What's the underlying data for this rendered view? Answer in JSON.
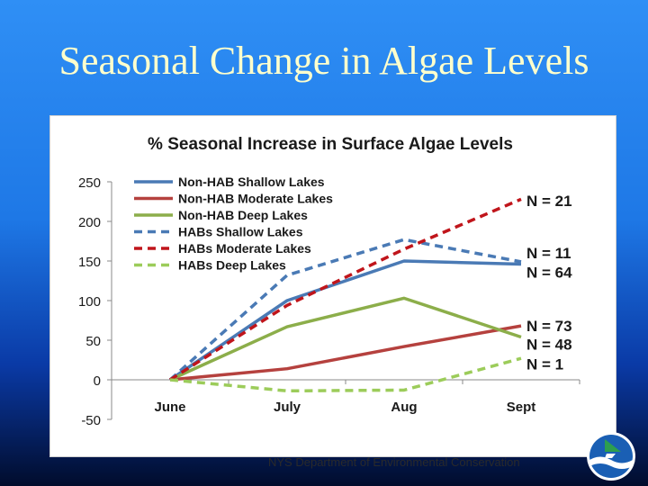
{
  "slide": {
    "title": "Seasonal Change in Algae Levels",
    "footer": "NYS Department of Environmental Conservation"
  },
  "colors": {
    "blue": "#4a7ab5",
    "red": "#b5413e",
    "green": "#8cae4a",
    "red_dashed": "#c0151b",
    "green_dashed": "#9ccc5a"
  },
  "chart_data": {
    "type": "line",
    "title": "% Seasonal Increase in Surface Algae Levels",
    "xlabel": "",
    "ylabel": "",
    "categories": [
      "June",
      "July",
      "Aug",
      "Sept"
    ],
    "ylim": [
      -50,
      250
    ],
    "yticks": [
      250,
      200,
      150,
      100,
      50,
      0,
      -50
    ],
    "grid": false,
    "legend": "top-left",
    "series": [
      {
        "name": "Non-HAB Shallow Lakes",
        "values": [
          0,
          100,
          150,
          146
        ],
        "color": "#4a7ab5",
        "dashed": false
      },
      {
        "name": "Non-HAB Moderate Lakes",
        "values": [
          0,
          14,
          42,
          68
        ],
        "color": "#b5413e",
        "dashed": false
      },
      {
        "name": "Non-HAB Deep Lakes",
        "values": [
          0,
          67,
          103,
          54
        ],
        "color": "#8cae4a",
        "dashed": false
      },
      {
        "name": "HABs Shallow Lakes",
        "values": [
          0,
          132,
          177,
          149
        ],
        "color": "#4a7ab5",
        "dashed": true
      },
      {
        "name": "HABs Moderate Lakes",
        "values": [
          0,
          94,
          165,
          228
        ],
        "color": "#c0151b",
        "dashed": true
      },
      {
        "name": "HABs Deep Lakes",
        "values": [
          0,
          -14,
          -13,
          27
        ],
        "color": "#9ccc5a",
        "dashed": true
      }
    ],
    "annotations": [
      {
        "text": "N = 21",
        "y": 226
      },
      {
        "text": "N = 11",
        "y": 160
      },
      {
        "text": "N = 64",
        "y": 136
      },
      {
        "text": "N = 73",
        "y": 68
      },
      {
        "text": "N = 48",
        "y": 45
      },
      {
        "text": "N = 1",
        "y": 20
      }
    ]
  }
}
